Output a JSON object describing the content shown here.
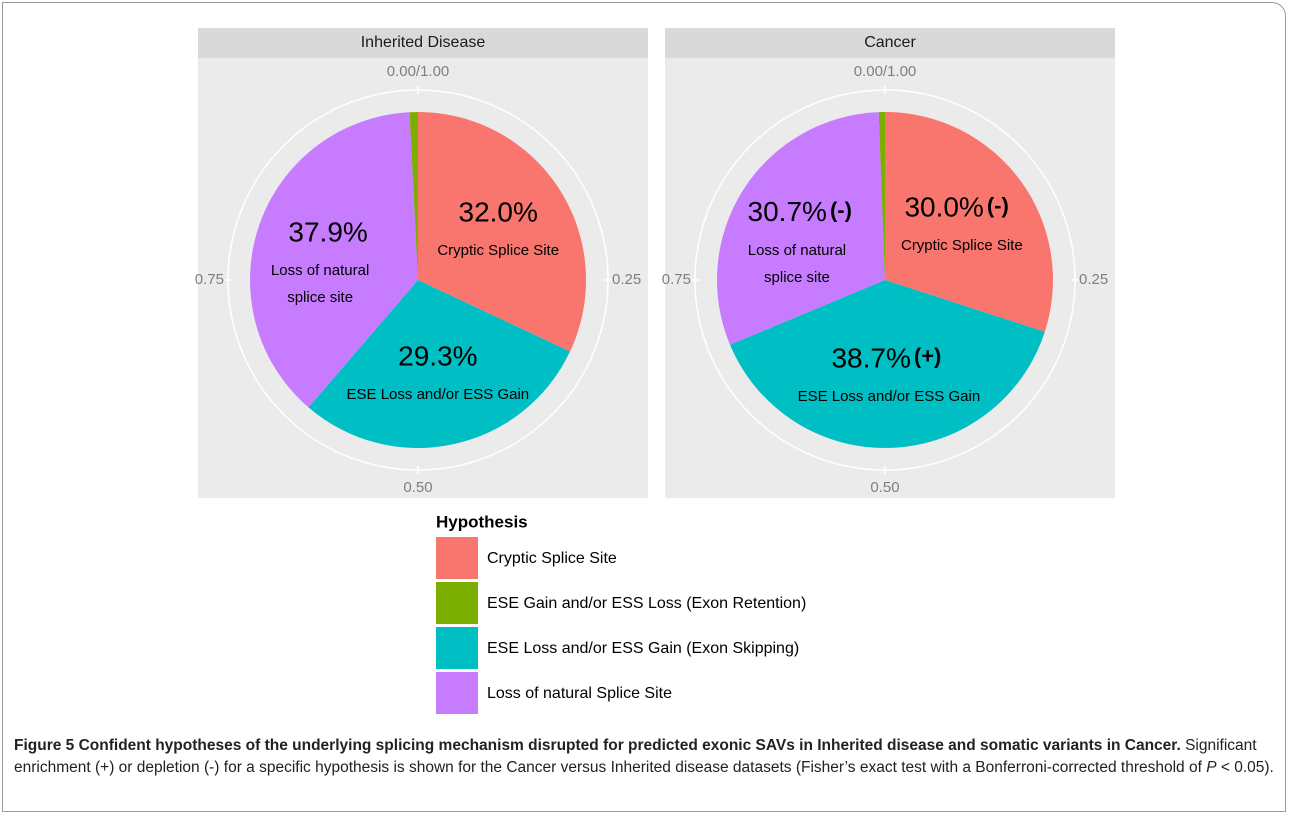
{
  "chart_data": [
    {
      "type": "pie",
      "title": "Inherited Disease",
      "values": [
        0.32,
        0.293,
        0.379,
        0.008
      ],
      "value_labels": [
        "32.0%",
        "29.3%",
        "37.9%",
        null
      ],
      "significance": [
        null,
        null,
        null,
        null
      ],
      "slice_labels": [
        "Cryptic Splice Site",
        "ESE Loss and/or ESS Gain",
        [
          "Loss of natural",
          "splice site"
        ],
        null
      ],
      "colors": [
        "#f8766d",
        "#00bfc4",
        "#c77cff",
        "#7cae00"
      ],
      "xlim": [
        0,
        1
      ],
      "xticks": [
        {
          "value": 0,
          "label": "0.00/1.00"
        },
        0.25,
        {
          "value": 0.5,
          "label": "0.50"
        },
        0.75
      ]
    },
    {
      "type": "pie",
      "title": "Cancer",
      "values": [
        0.3,
        0.387,
        0.307,
        0.006
      ],
      "value_labels": [
        "30.0%",
        "38.7%",
        "30.7%",
        null
      ],
      "significance": [
        "(-)",
        "(+)",
        "(-)",
        null
      ],
      "slice_labels": [
        "Cryptic Splice Site",
        "ESE Loss and/or ESS Gain",
        [
          "Loss of natural",
          "splice site"
        ],
        null
      ],
      "colors": [
        "#f8766d",
        "#00bfc4",
        "#c77cff",
        "#7cae00"
      ],
      "xlim": [
        0,
        1
      ],
      "xticks": [
        {
          "value": 0,
          "label": "0.00/1.00"
        },
        0.25,
        {
          "value": 0.5,
          "label": "0.50"
        },
        0.75
      ]
    }
  ],
  "legend": {
    "title": "Hypothesis",
    "entries": [
      "Cryptic Splice Site",
      "ESE Gain and/or ESS Loss (Exon Retention)",
      "ESE Loss and/or ESS Gain (Exon Skipping)",
      "Loss of natural Splice Site"
    ],
    "colors": [
      "#f8766d",
      "#7cae00",
      "#00bfc4",
      "#c77cff"
    ]
  },
  "caption": {
    "title": "Figure 5 Confident hypotheses of the underlying splicing mechanism disrupted for predicted exonic SAVs in Inherited disease and somatic variants in Cancer.",
    "body": "Significant enrichment (+) or depletion (-) for a specific hypothesis is shown for the Cancer versus Inherited disease datasets (Fisher’s exact test with a Bonferroni-corrected threshold of",
    "italic": "P",
    "tail": "< 0.05)."
  }
}
